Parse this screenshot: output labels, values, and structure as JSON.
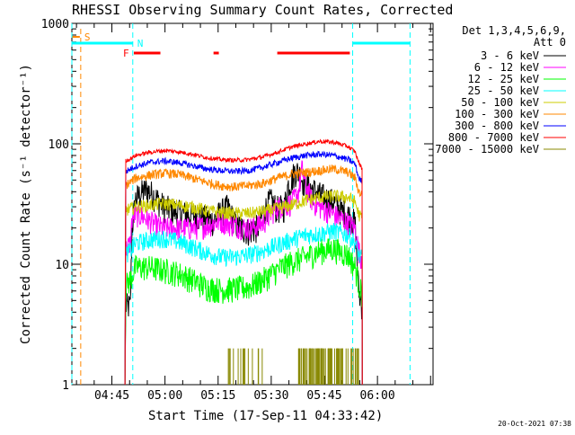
{
  "chart_data": {
    "type": "line",
    "title": "RHESSI Observing Summary Count Rates, Corrected",
    "xlabel": "Start Time (17-Sep-11 04:33:42)",
    "ylabel": "Corrected Count Rate (s⁻¹ detector⁻¹)",
    "yscale": "log",
    "ylim": [
      1,
      1000
    ],
    "xlim_minutes": [
      0,
      102
    ],
    "x_ticks": [
      {
        "min": 11.3,
        "label": "04:45"
      },
      {
        "min": 26.3,
        "label": "05:00"
      },
      {
        "min": 41.3,
        "label": "05:15"
      },
      {
        "min": 56.3,
        "label": "05:30"
      },
      {
        "min": 71.3,
        "label": "05:45"
      },
      {
        "min": 86.3,
        "label": "06:00"
      }
    ],
    "y_ticks": [
      {
        "v": 1,
        "label": "1"
      },
      {
        "v": 10,
        "label": "10"
      },
      {
        "v": 100,
        "label": "100"
      },
      {
        "v": 1000,
        "label": "1000"
      }
    ],
    "legend": {
      "header1": "Det 1,3,4,5,6,9,",
      "header2": "Att 0",
      "placement": "right"
    },
    "series": [
      {
        "name": "3 - 6 keV",
        "color": "#000000",
        "x": [
          15.0,
          16.5,
          17.0,
          18.0,
          20.0,
          21.0,
          23.0,
          26.0,
          30.0,
          33.0,
          36.0,
          38.0,
          40.0,
          42.0,
          44.0,
          46.0,
          47.0,
          48.0,
          50.0,
          52.0,
          53.0,
          54.0,
          56.0,
          58.0,
          60.0,
          61.0,
          62.0,
          63.0,
          64.0,
          66.0,
          68.0,
          69.0,
          70.0,
          72.0,
          74.0,
          76.0,
          78.0,
          80.0,
          81.0,
          82.0
        ],
        "y": [
          4.5,
          4.5,
          20,
          35,
          40,
          42,
          38,
          30,
          27,
          26,
          25,
          24,
          23,
          27,
          30,
          22,
          21,
          20,
          19,
          20,
          21,
          27,
          34,
          29,
          30,
          45,
          50,
          60,
          58,
          46,
          42,
          40,
          38,
          35,
          33,
          28,
          26,
          22,
          6,
          4.5
        ]
      },
      {
        "name": "6 - 12 keV",
        "color": "#ff00ff",
        "x": [
          15.0,
          16.5,
          17.0,
          18.0,
          20.0,
          22.0,
          24.0,
          26.0,
          30.0,
          34.0,
          38.0,
          40.0,
          42.0,
          44.0,
          46.0,
          48.0,
          50.0,
          52.0,
          54.0,
          56.0,
          58.0,
          60.0,
          62.0,
          64.0,
          65.0,
          66.0,
          68.0,
          70.0,
          72.0,
          74.0,
          76.0,
          78.0,
          80.0,
          81.0,
          82.0
        ],
        "y": [
          13,
          15,
          24,
          26,
          25,
          23,
          21,
          20,
          20,
          20,
          21,
          22,
          23,
          22,
          21,
          20.5,
          20,
          21,
          22,
          26,
          30,
          31,
          32,
          40,
          62,
          45,
          33,
          30,
          28,
          26,
          24,
          22,
          20,
          13,
          11
        ]
      },
      {
        "name": "12 - 25 keV",
        "color": "#00ff00",
        "x": [
          15.0,
          16.5,
          18.0,
          22.0,
          26.0,
          30.0,
          34.0,
          38.0,
          42.0,
          46.0,
          50.0,
          54.0,
          58.0,
          62.0,
          66.0,
          70.0,
          74.0,
          78.0,
          80.0,
          81.0,
          82.0
        ],
        "y": [
          6.5,
          7.5,
          9.5,
          9.5,
          9,
          8.5,
          7.5,
          6.5,
          6.2,
          6.3,
          6.5,
          7.5,
          9,
          10.5,
          11.5,
          13,
          13.5,
          12,
          9.5,
          7,
          5.5
        ]
      },
      {
        "name": "25 - 50 keV",
        "color": "#00ffff",
        "x": [
          15.0,
          16.5,
          18.0,
          22.0,
          26.0,
          30.0,
          34.0,
          38.0,
          42.0,
          46.0,
          50.0,
          54.0,
          58.0,
          62.0,
          66.0,
          70.0,
          74.0,
          78.0,
          80.0,
          81.0,
          82.0
        ],
        "y": [
          12,
          13,
          15,
          16,
          16.5,
          15.5,
          14,
          12.5,
          11.5,
          11.5,
          12,
          13,
          14.5,
          16,
          17.5,
          18,
          19,
          17.5,
          15,
          12,
          11
        ]
      },
      {
        "name": "50 - 100 keV",
        "color": "#cccc00",
        "x": [
          15.0,
          16.5,
          18.0,
          22.0,
          26.0,
          30.0,
          34.0,
          38.0,
          42.0,
          46.0,
          50.0,
          54.0,
          58.0,
          62.0,
          66.0,
          70.0,
          74.0,
          78.0,
          80.0,
          81.0,
          82.0
        ],
        "y": [
          28,
          29,
          30,
          31,
          32,
          31,
          30,
          28,
          27,
          26.5,
          26.5,
          27.5,
          29,
          31,
          34,
          36,
          37,
          36,
          33,
          26,
          24
        ]
      },
      {
        "name": "100 - 300 keV",
        "color": "#ff8800",
        "x": [
          15.0,
          16.5,
          18.0,
          22.0,
          26.0,
          30.0,
          34.0,
          38.0,
          42.0,
          46.0,
          50.0,
          54.0,
          58.0,
          62.0,
          66.0,
          70.0,
          74.0,
          78.0,
          80.0,
          81.0,
          82.0
        ],
        "y": [
          45,
          48,
          52,
          55,
          57,
          56,
          52,
          48,
          45,
          44,
          45,
          47,
          52,
          56,
          58,
          60,
          62,
          58,
          52,
          40,
          38
        ]
      },
      {
        "name": "300 - 800 keV",
        "color": "#0000ff",
        "x": [
          15.0,
          16.5,
          18.0,
          22.0,
          26.0,
          30.0,
          34.0,
          38.0,
          42.0,
          46.0,
          50.0,
          54.0,
          58.0,
          62.0,
          66.0,
          70.0,
          74.0,
          78.0,
          80.0,
          81.0,
          82.0
        ],
        "y": [
          58,
          62,
          65,
          70,
          72,
          70,
          66,
          62,
          60,
          59,
          60,
          64,
          70,
          76,
          80,
          82,
          80,
          74,
          68,
          52,
          48
        ]
      },
      {
        "name": "800 - 7000 keV",
        "color": "#ff0000",
        "x": [
          15.0,
          16.5,
          18.0,
          22.0,
          26.0,
          30.0,
          34.0,
          38.0,
          42.0,
          46.0,
          50.0,
          54.0,
          58.0,
          62.0,
          66.0,
          70.0,
          74.0,
          78.0,
          80.0,
          81.0,
          82.0
        ],
        "y": [
          72,
          75,
          80,
          85,
          88,
          86,
          82,
          77,
          74,
          73,
          74,
          78,
          85,
          94,
          100,
          105,
          103,
          95,
          86,
          70,
          62
        ]
      },
      {
        "name": "7000 - 15000 keV",
        "color": "#888800",
        "x": [],
        "y": []
      }
    ],
    "annotations": {
      "saa_flag": {
        "label": "S",
        "color": "#ff8800",
        "at_min": 2.5
      },
      "night_flag": {
        "label": "N",
        "color": "#00ffff"
      },
      "flare_flag": {
        "label": "F",
        "color": "#ff0000"
      },
      "night_intervals_min": [
        [
          0,
          17.2
        ],
        [
          79.3,
          95.5
        ]
      ],
      "flare_intervals_min": [
        [
          17.5,
          25.0
        ],
        [
          40.0,
          41.5
        ],
        [
          58.0,
          78.5
        ]
      ]
    }
  },
  "footer": {
    "timestamp": "20-Oct-2021 07:38"
  }
}
